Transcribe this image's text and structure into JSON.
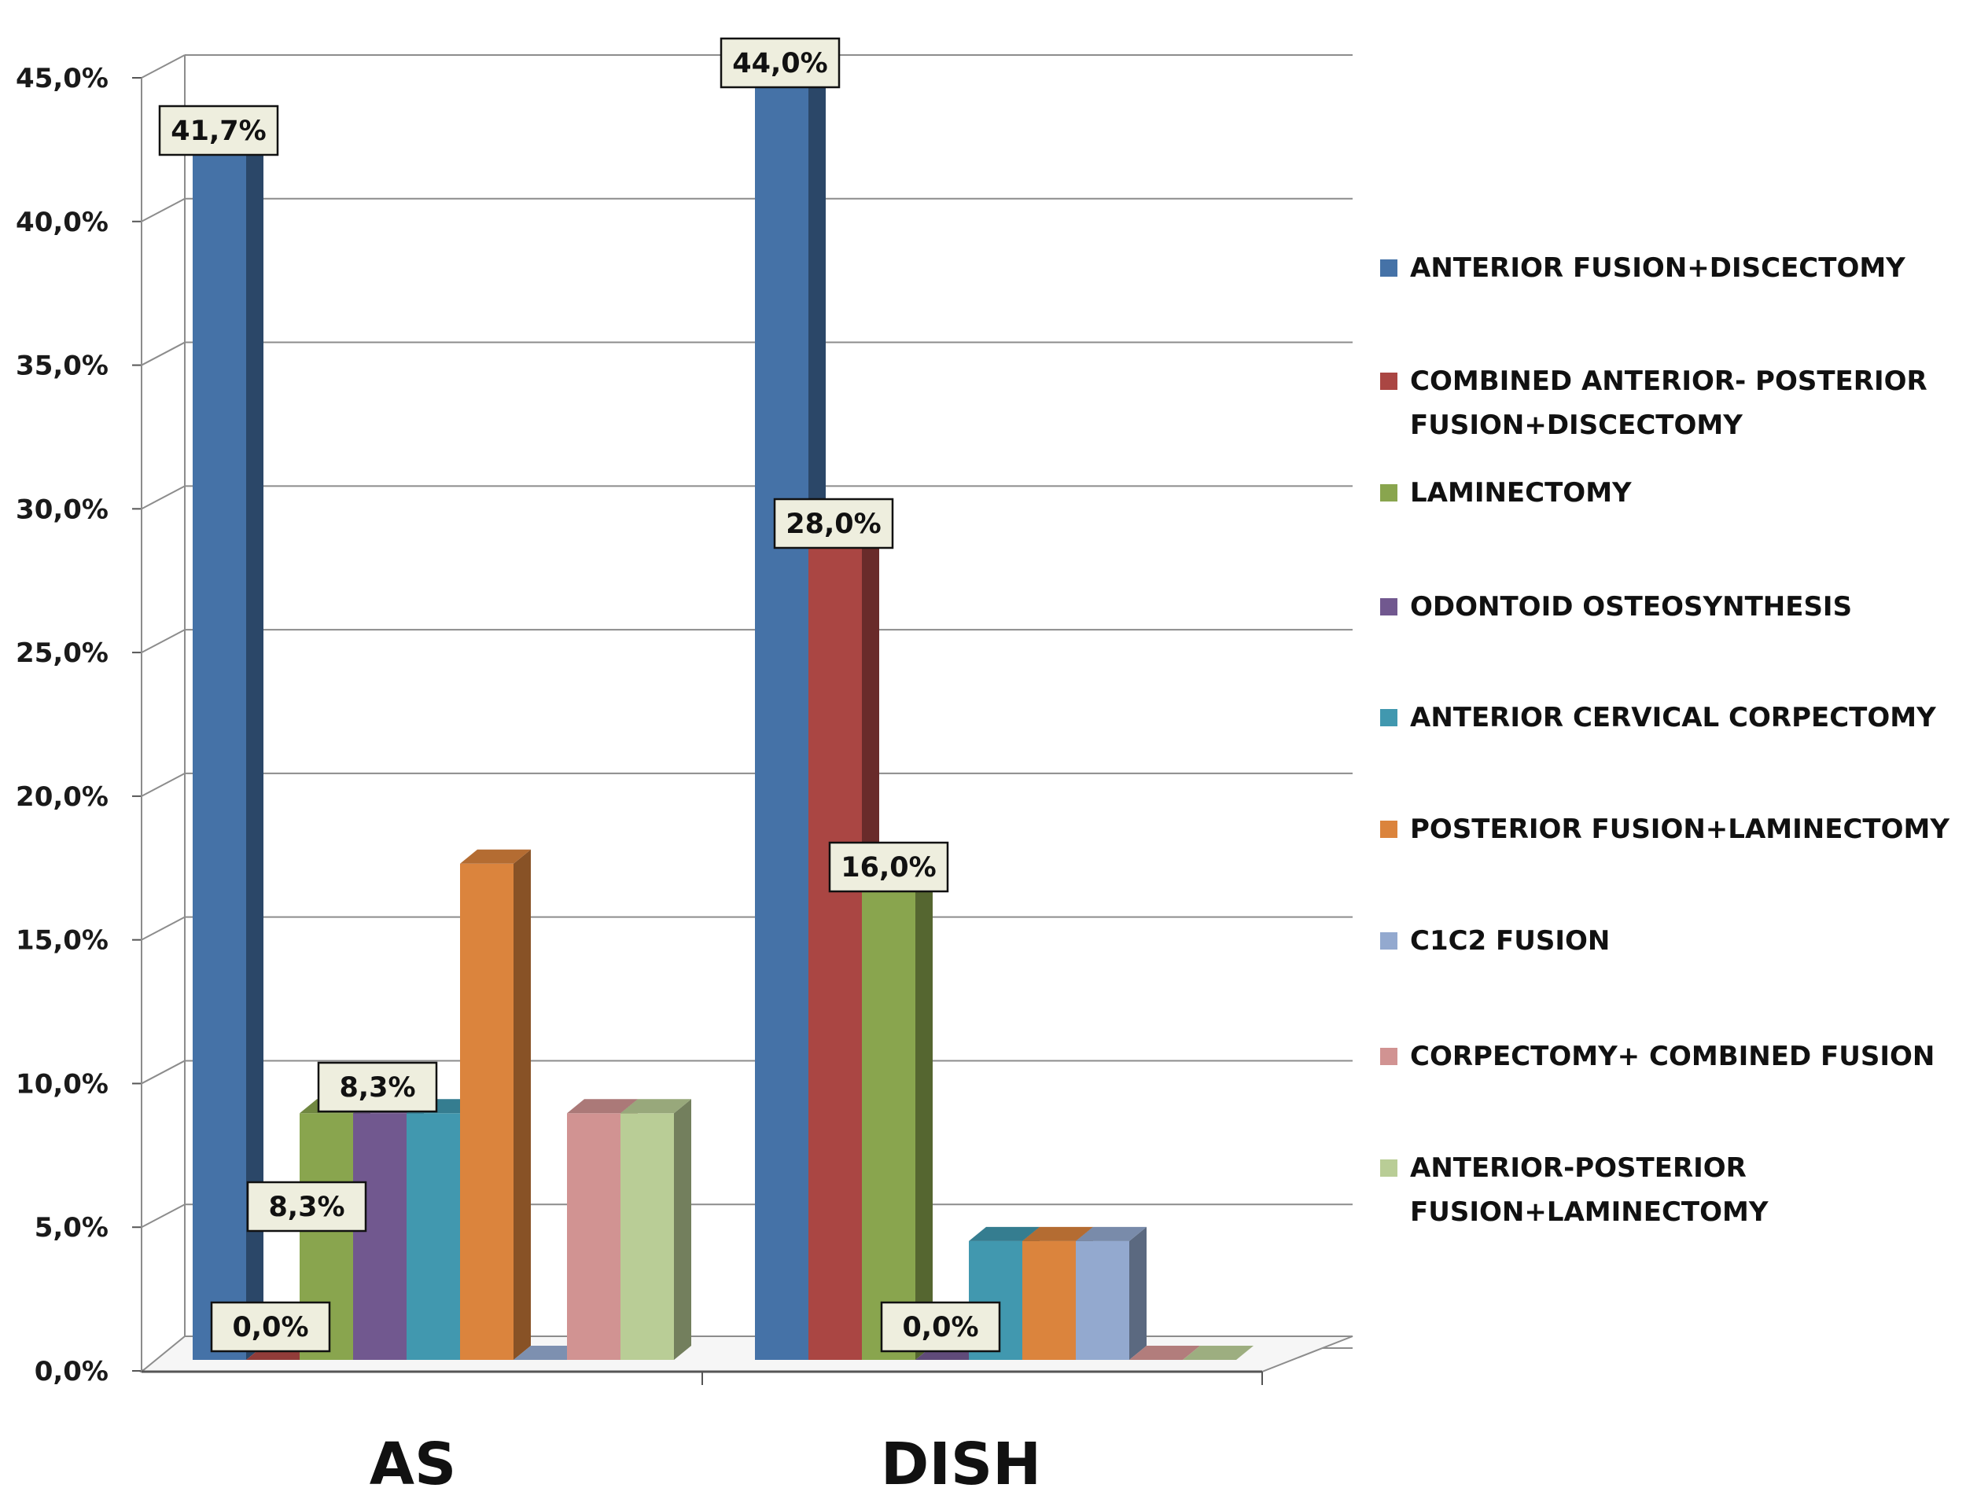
{
  "chart_data": {
    "type": "bar",
    "categories": [
      "AS",
      "DISH"
    ],
    "ylim": [
      0,
      45
    ],
    "yticks": [
      "0,0%",
      "5,0%",
      "10,0%",
      "15,0%",
      "20,0%",
      "25,0%",
      "30,0%",
      "35,0%",
      "40,0%",
      "45,0%"
    ],
    "grid": true,
    "legend_position": "right",
    "series": [
      {
        "name": "ANTERIOR FUSION+DISCECTOMY",
        "name_lines": [
          "ANTERIOR FUSION+DISCECTOMY"
        ],
        "color": "#4572A7",
        "values": [
          41.7,
          44.0
        ]
      },
      {
        "name": "COMBINED ANTERIOR- POSTERIOR FUSION+DISCECTOMY",
        "name_lines": [
          "COMBINED ANTERIOR- POSTERIOR",
          "FUSION+DISCECTOMY"
        ],
        "color": "#AA4643",
        "values": [
          0.0,
          28.0
        ]
      },
      {
        "name": "LAMINECTOMY",
        "name_lines": [
          "LAMINECTOMY"
        ],
        "color": "#89A54E",
        "values": [
          8.3,
          16.0
        ]
      },
      {
        "name": "ODONTOID OSTEOSYNTHESIS",
        "name_lines": [
          "ODONTOID OSTEOSYNTHESIS"
        ],
        "color": "#71588F",
        "values": [
          8.3,
          0.0
        ]
      },
      {
        "name": "ANTERIOR CERVICAL CORPECTOMY",
        "name_lines": [
          "ANTERIOR CERVICAL CORPECTOMY"
        ],
        "color": "#4198AF",
        "values": [
          8.3,
          4.0
        ]
      },
      {
        "name": "POSTERIOR FUSION+LAMINECTOMY",
        "name_lines": [
          "POSTERIOR FUSION+LAMINECTOMY"
        ],
        "color": "#DB843D",
        "values": [
          16.7,
          4.0
        ]
      },
      {
        "name": "C1C2 FUSION",
        "name_lines": [
          "C1C2 FUSION"
        ],
        "color": "#93A9CF",
        "values": [
          0.0,
          4.0
        ]
      },
      {
        "name": "CORPECTOMY+ COMBINED FUSION",
        "name_lines": [
          "CORPECTOMY+ COMBINED FUSION"
        ],
        "color": "#D19392",
        "values": [
          8.3,
          0.0
        ]
      },
      {
        "name": "ANTERIOR-POSTERIOR FUSION+LAMINECTOMY",
        "name_lines": [
          "ANTERIOR-POSTERIOR",
          "FUSION+LAMINECTOMY"
        ],
        "color": "#B9CD96",
        "values": [
          8.3,
          0.0
        ]
      }
    ],
    "data_labels": [
      {
        "category": 0,
        "series": 0,
        "text": "41,7%"
      },
      {
        "category": 0,
        "series": 1,
        "text": "0,0%"
      },
      {
        "category": 0,
        "series": 2,
        "text": "8,3%"
      },
      {
        "category": 0,
        "series": 3,
        "text": "8,3%"
      },
      {
        "category": 1,
        "series": 0,
        "text": "44,0%"
      },
      {
        "category": 1,
        "series": 1,
        "text": "28,0%"
      },
      {
        "category": 1,
        "series": 2,
        "text": "16,0%"
      },
      {
        "category": 1,
        "series": 3,
        "text": "0,0%"
      }
    ]
  }
}
